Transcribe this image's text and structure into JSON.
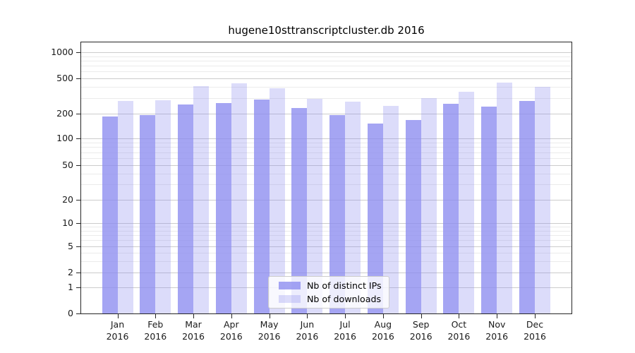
{
  "figure": {
    "title": "hugene10sttranscriptcluster.db 2016"
  },
  "chart_data": {
    "type": "bar",
    "title": "hugene10sttranscriptcluster.db 2016",
    "xlabel": "",
    "ylabel": "",
    "y_scale": "log-like (asinh), zero included",
    "y_ticks": [
      0,
      1,
      2,
      5,
      10,
      20,
      50,
      100,
      200,
      500,
      1000
    ],
    "y_minor_ticks": [
      3,
      4,
      6,
      7,
      8,
      9,
      30,
      40,
      60,
      70,
      80,
      90,
      300,
      400,
      600,
      700,
      800,
      900
    ],
    "ylim": [
      0,
      1000
    ],
    "grid": true,
    "legend_position": "lower center",
    "categories": [
      "Jan",
      "Feb",
      "Mar",
      "Apr",
      "May",
      "Jun",
      "Jul",
      "Aug",
      "Sep",
      "Oct",
      "Nov",
      "Dec"
    ],
    "year": "2016",
    "series": [
      {
        "name": "Nb of distinct IPs",
        "color": "rgba(140,140,240,0.78)",
        "values": [
          185,
          190,
          250,
          260,
          285,
          230,
          190,
          150,
          165,
          255,
          240,
          275
        ]
      },
      {
        "name": "Nb of downloads",
        "color": "rgba(140,140,240,0.30)",
        "values": [
          275,
          280,
          410,
          435,
          385,
          290,
          270,
          245,
          295,
          350,
          445,
          400
        ]
      }
    ]
  },
  "colors": {
    "background": "#ffffff",
    "spine": "#262626",
    "grid_major": "#cccccc",
    "grid_minor": "#ebebeb",
    "text": "#1a1a1a",
    "legend_bg": "rgba(255,255,255,0.8)",
    "legend_border": "#cccccc"
  }
}
